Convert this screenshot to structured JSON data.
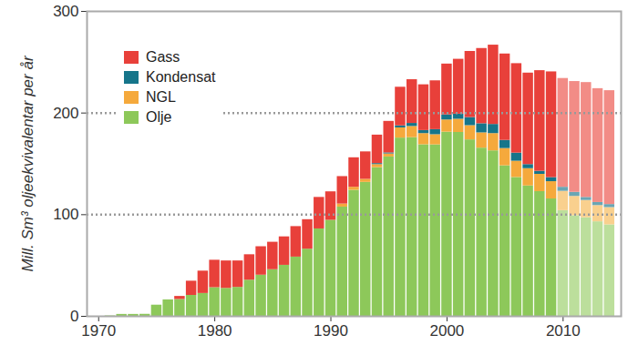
{
  "chart_data": {
    "type": "bar",
    "stacked": true,
    "grid": true,
    "legend": "top-left",
    "ylabel": "Mill. Sm³ oljeekvivalentar per år",
    "xlim": [
      1969,
      2015
    ],
    "xticks": [
      1970,
      1980,
      1990,
      2000,
      2010
    ],
    "ylim": [
      0,
      300
    ],
    "yticks": [
      0,
      100,
      200,
      300
    ],
    "x": [
      1971,
      1972,
      1973,
      1974,
      1975,
      1976,
      1977,
      1978,
      1979,
      1980,
      1981,
      1982,
      1983,
      1984,
      1985,
      1986,
      1987,
      1988,
      1989,
      1990,
      1991,
      1992,
      1993,
      1994,
      1995,
      1996,
      1997,
      1998,
      1999,
      2000,
      2001,
      2002,
      2003,
      2004,
      2005,
      2006,
      2007,
      2008,
      2009,
      2010,
      2011,
      2012,
      2013,
      2014
    ],
    "series": [
      {
        "name": "Gass",
        "color": "#e8403a",
        "values": [
          0,
          0,
          0,
          0,
          0,
          0,
          3,
          14,
          22,
          27,
          27,
          26,
          25,
          28,
          27,
          28,
          30,
          29,
          31,
          28,
          27,
          29,
          27,
          28,
          31,
          38,
          43,
          45,
          48,
          50,
          54,
          65,
          74,
          78,
          85,
          88,
          90,
          99,
          104,
          107,
          109,
          113,
          112,
          112
        ],
        "colors": [
          "#e8403a",
          "#e8403a",
          "#e8403a",
          "#e8403a",
          "#e8403a",
          "#e8403a",
          "#e8403a",
          "#e8403a",
          "#e8403a",
          "#e8403a",
          "#e8403a",
          "#e8403a",
          "#e8403a",
          "#e8403a",
          "#e8403a",
          "#e8403a",
          "#e8403a",
          "#e8403a",
          "#e8403a",
          "#e8403a",
          "#e8403a",
          "#e8403a",
          "#e8403a",
          "#e8403a",
          "#e8403a",
          "#e8403a",
          "#e8403a",
          "#e8403a",
          "#e8403a",
          "#e8403a",
          "#e8403a",
          "#e8403a",
          "#e8403a",
          "#e8403a",
          "#e8403a",
          "#e8403a",
          "#e8403a",
          "#e8403a",
          "#e8403a",
          "#f28c86",
          "#f28c86",
          "#f28c86",
          "#f28c86",
          "#f28c86"
        ]
      },
      {
        "name": "Kondensat",
        "color": "#16758a",
        "values": [
          0,
          0,
          0,
          0,
          0,
          0,
          0,
          0,
          0,
          0,
          0,
          0,
          0,
          0,
          0,
          0,
          0,
          0,
          0,
          0,
          0,
          0,
          0,
          1,
          1,
          2,
          3,
          3,
          5,
          5,
          5,
          8,
          9,
          9,
          8,
          8,
          4,
          3,
          4,
          4,
          4,
          3,
          3,
          3
        ],
        "colors": [
          "#16758a",
          "#16758a",
          "#16758a",
          "#16758a",
          "#16758a",
          "#16758a",
          "#16758a",
          "#16758a",
          "#16758a",
          "#16758a",
          "#16758a",
          "#16758a",
          "#16758a",
          "#16758a",
          "#16758a",
          "#16758a",
          "#16758a",
          "#16758a",
          "#16758a",
          "#16758a",
          "#16758a",
          "#16758a",
          "#16758a",
          "#16758a",
          "#16758a",
          "#16758a",
          "#16758a",
          "#16758a",
          "#16758a",
          "#16758a",
          "#16758a",
          "#16758a",
          "#16758a",
          "#16758a",
          "#16758a",
          "#16758a",
          "#16758a",
          "#16758a",
          "#16758a",
          "#6aa6b4",
          "#6aa6b4",
          "#6aa6b4",
          "#6aa6b4",
          "#6aa6b4"
        ]
      },
      {
        "name": "NGL",
        "color": "#f5a93c",
        "values": [
          0,
          0,
          0,
          0,
          0,
          0,
          0,
          0,
          0,
          0,
          0,
          0,
          0,
          0,
          0,
          0,
          0,
          0,
          0,
          0,
          3,
          3,
          3,
          3,
          3,
          10,
          11,
          11,
          10,
          12,
          13,
          14,
          15,
          17,
          17,
          16,
          17,
          17,
          17,
          19,
          19,
          17,
          16,
          17
        ],
        "colors": [
          "#f5a93c",
          "#f5a93c",
          "#f5a93c",
          "#f5a93c",
          "#f5a93c",
          "#f5a93c",
          "#f5a93c",
          "#f5a93c",
          "#f5a93c",
          "#f5a93c",
          "#f5a93c",
          "#f5a93c",
          "#f5a93c",
          "#f5a93c",
          "#f5a93c",
          "#f5a93c",
          "#f5a93c",
          "#f5a93c",
          "#f5a93c",
          "#f5a93c",
          "#f5a93c",
          "#f5a93c",
          "#f5a93c",
          "#f5a93c",
          "#f5a93c",
          "#f5a93c",
          "#f5a93c",
          "#f5a93c",
          "#f5a93c",
          "#f5a93c",
          "#f5a93c",
          "#f5a93c",
          "#f5a93c",
          "#f5a93c",
          "#f5a93c",
          "#f5a93c",
          "#f5a93c",
          "#f5a93c",
          "#f5a93c",
          "#f9d08e",
          "#f9d08e",
          "#f9d08e",
          "#f9d08e",
          "#f9d08e"
        ]
      },
      {
        "name": "Olje",
        "color": "#8dc85a",
        "values": [
          0.4,
          1.9,
          1.9,
          2.0,
          11.0,
          16.2,
          16.6,
          20.6,
          22.5,
          28.2,
          27.5,
          28.5,
          35.6,
          40.5,
          45.9,
          50.2,
          58.3,
          66.1,
          86.0,
          94.5,
          107.5,
          124.0,
          131.8,
          146.3,
          156.8,
          175.4,
          175.8,
          168.8,
          168.7,
          181.2,
          180.9,
          173.6,
          165.5,
          162.8,
          148.1,
          136.6,
          128.3,
          122.7,
          115.5,
          104,
          99,
          97,
          93,
          90
        ],
        "colors": [
          "#8dc85a",
          "#8dc85a",
          "#8dc85a",
          "#8dc85a",
          "#8dc85a",
          "#8dc85a",
          "#8dc85a",
          "#8dc85a",
          "#8dc85a",
          "#8dc85a",
          "#8dc85a",
          "#8dc85a",
          "#8dc85a",
          "#8dc85a",
          "#8dc85a",
          "#8dc85a",
          "#8dc85a",
          "#8dc85a",
          "#8dc85a",
          "#8dc85a",
          "#8dc85a",
          "#8dc85a",
          "#8dc85a",
          "#8dc85a",
          "#8dc85a",
          "#8dc85a",
          "#8dc85a",
          "#8dc85a",
          "#8dc85a",
          "#8dc85a",
          "#8dc85a",
          "#8dc85a",
          "#8dc85a",
          "#8dc85a",
          "#8dc85a",
          "#8dc85a",
          "#8dc85a",
          "#8dc85a",
          "#8dc85a",
          "#bcdf9c",
          "#bcdf9c",
          "#bcdf9c",
          "#bcdf9c",
          "#bcdf9c"
        ]
      }
    ]
  }
}
